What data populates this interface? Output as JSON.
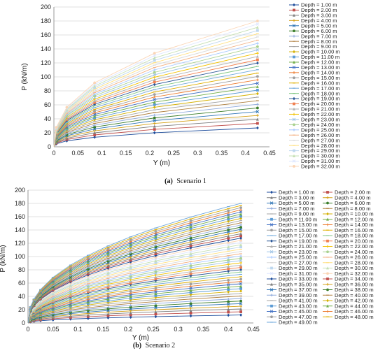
{
  "chart_data": [
    {
      "type": "line",
      "caption_letter": "(a)",
      "caption_text": "Scenario 1",
      "xlabel": "Y (m)",
      "ylabel": "P (kN/m)",
      "xlim": [
        0,
        0.45
      ],
      "ylim": [
        0,
        200
      ],
      "xticks": [
        "0",
        "0.05",
        "0.1",
        "0.15",
        "0.2",
        "0.25",
        "0.3",
        "0.35",
        "0.4",
        "0.45"
      ],
      "yticks": [
        "0",
        "20",
        "40",
        "60",
        "80",
        "100",
        "120",
        "140",
        "160",
        "180",
        "200"
      ],
      "grid": true,
      "legend_position": "right",
      "x": [
        0,
        0.005,
        0.027,
        0.085,
        0.21,
        0.425
      ],
      "series_names": [
        "Depth = 1.00 m",
        "Depth = 2.00 m",
        "Depth = 3.00 m",
        "Depth = 4.00 m",
        "Depth = 5.00 m",
        "Depth = 6.00 m",
        "Depth = 7.00 m",
        "Depth = 8.00 m",
        "Depth = 9.00 m",
        "Depth = 10.00 m",
        "Depth = 11.00 m",
        "Depth = 12.00 m",
        "Depth = 13.00 m",
        "Depth = 14.00 m",
        "Depth = 15.00 m",
        "Depth = 16.00 m",
        "Depth = 17.00 m",
        "Depth = 18.00 m",
        "Depth = 19.00 m",
        "Depth = 20.00 m",
        "Depth = 21.00 m",
        "Depth = 22.00 m",
        "Depth = 23.00 m",
        "Depth = 24.00 m",
        "Depth = 25.00 m",
        "Depth = 26.00 m",
        "Depth = 27.00 m",
        "Depth = 28.00 m",
        "Depth = 29.00 m",
        "Depth = 30.00 m",
        "Depth = 31.00 m",
        "Depth = 32.00 m"
      ],
      "final_values_first": 27,
      "final_values_last": 180
    },
    {
      "type": "line",
      "caption_letter": "(b)",
      "caption_text": "Scenario 2",
      "xlabel": "Y (m)",
      "ylabel": "P (kN/m)",
      "xlim": [
        0,
        0.45
      ],
      "ylim": [
        0,
        200
      ],
      "xticks": [
        "0",
        "0.05",
        "0.1",
        "0.15",
        "0.2",
        "0.25",
        "0.3",
        "0.35",
        "0.4",
        "0.45"
      ],
      "yticks": [
        "0",
        "20",
        "40",
        "60",
        "80",
        "100",
        "120",
        "140",
        "160",
        "180",
        "200"
      ],
      "grid": true,
      "legend_position": "right",
      "x": [
        0,
        0.005,
        0.012,
        0.025,
        0.05,
        0.085,
        0.12,
        0.16,
        0.205,
        0.255,
        0.325,
        0.4,
        0.425
      ],
      "series_names": [
        "Depth = 1.00 m",
        "Depth = 2.00 m",
        "Depth = 3.00 m",
        "Depth = 4.00 m",
        "Depth = 5.00 m",
        "Depth = 6.00 m",
        "Depth = 7.00 m",
        "Depth = 8.00 m",
        "Depth = 9.00 m",
        "Depth = 10.00 m",
        "Depth = 11.00 m",
        "Depth = 12.00 m",
        "Depth = 13.00 m",
        "Depth = 14.00 m",
        "Depth = 15.00 m",
        "Depth = 16.00 m",
        "Depth = 17.00 m",
        "Depth = 18.00 m",
        "Depth = 19.00 m",
        "Depth = 20.00 m",
        "Depth = 21.00 m",
        "Depth = 22.00 m",
        "Depth = 23.00 m",
        "Depth = 24.00 m",
        "Depth = 25.00 m",
        "Depth = 26.00 m",
        "Depth = 27.00 m",
        "Depth = 28.00 m",
        "Depth = 29.00 m",
        "Depth = 30.00 m",
        "Depth = 31.00 m",
        "Depth = 32.00 m",
        "Depth = 33.00 m",
        "Depth = 34.00 m",
        "Depth = 35.00 m",
        "Depth = 36.00 m",
        "Depth = 37.00 m",
        "Depth = 38.00 m",
        "Depth = 39.00 m",
        "Depth = 40.00 m",
        "Depth = 41.00 m",
        "Depth = 42.00 m",
        "Depth = 43.00 m",
        "Depth = 44.00 m",
        "Depth = 45.00 m",
        "Depth = 46.00 m",
        "Depth = 47.00 m",
        "Depth = 48.00 m",
        "Depth = 49.00 m"
      ],
      "final_values_first": 12,
      "final_values_last": 180
    }
  ],
  "palette": [
    "#1f4e9c",
    "#c0504d",
    "#7f7f7f",
    "#d4a017",
    "#2e75b6",
    "#3a7d2a",
    "#8faadc",
    "#b08040",
    "#a5a5a5",
    "#d4b106",
    "#5b9bd5",
    "#70ad47",
    "#4472c4",
    "#ed7d31",
    "#9e9e9e",
    "#e0b000",
    "#6fa8dc",
    "#81c784",
    "#2b5797",
    "#f08050",
    "#b0b0b0",
    "#f2c200",
    "#9dc3e6",
    "#a9d18e",
    "#a6c8ff",
    "#f4b183",
    "#d9d9d9",
    "#ffe080",
    "#bdd7ee",
    "#c5e0b4",
    "#dde6ff",
    "#fbd5b5"
  ],
  "marker_shapes": [
    "diamond",
    "square",
    "triangle",
    "cross",
    "x",
    "circle",
    "plus",
    "dash",
    "dash",
    "diamond",
    "square",
    "triangle",
    "x",
    "cross",
    "circle",
    "dash",
    "dash",
    "dash",
    "diamond",
    "square",
    "triangle",
    "cross",
    "x",
    "circle",
    "plus",
    "dash",
    "dash",
    "dash",
    "square",
    "triangle",
    "x",
    "circle"
  ]
}
